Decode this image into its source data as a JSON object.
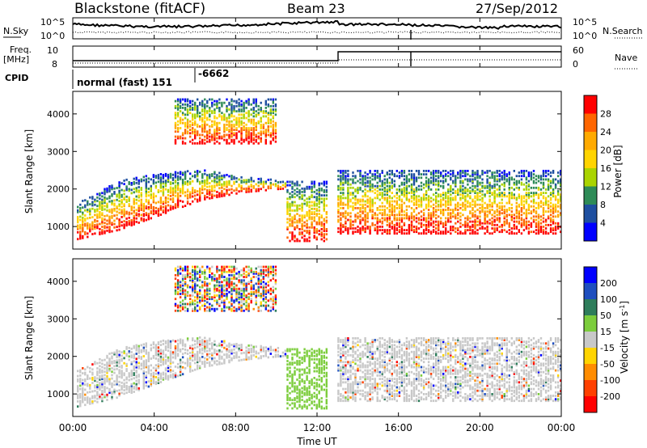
{
  "chart_data": [
    {
      "type": "heatmap",
      "header": {
        "radar": "Blackstone (fitACF)",
        "beam": "Beam 23",
        "date": "27/Sep/2012"
      },
      "summary_panels": {
        "left_labels": {
          "nsky": "N.Sky",
          "freq": "Freq.",
          "freq_unit": "[MHz]",
          "cpid": "CPID"
        },
        "right_labels": {
          "nsearch": "N.Search",
          "nave": "Nave"
        },
        "noise_ticks": [
          "10^5",
          "10^0"
        ],
        "freq_ticks": [
          "10",
          "8"
        ],
        "nave_ticks": [
          "60",
          "0"
        ],
        "cpid_segments": [
          {
            "label": "normal (fast) 151",
            "start_hour": 0,
            "end_hour": 6
          },
          {
            "label": "-6662",
            "start_hour": 6,
            "end_hour": 24
          }
        ],
        "frequency_step_hour": 13.1
      },
      "xlabel": "Time UT",
      "x_ticks": [
        "00:00",
        "04:00",
        "08:00",
        "12:00",
        "16:00",
        "20:00",
        "00:00"
      ],
      "xlim_hours": [
        0,
        24
      ],
      "ylabel": "Slant Range [km]",
      "ylim": [
        400,
        4600
      ],
      "y_ticks": [
        "1000",
        "2000",
        "3000",
        "4000"
      ],
      "panels": [
        {
          "quantity": "Power",
          "colorbar_label": "Power [dB]",
          "colorbar_ticks": [
            "28",
            "24",
            "20",
            "16",
            "12",
            "8",
            "4"
          ],
          "colorbar_colors": [
            "#ff0000",
            "#ff6600",
            "#ffaa00",
            "#ffd400",
            "#aad400",
            "#2e8b57",
            "#1e4fa0",
            "#0000ff"
          ],
          "range_dB": [
            0,
            32
          ]
        },
        {
          "quantity": "Velocity",
          "colorbar_label": "Velocity [m s^-1]",
          "colorbar_ticks": [
            "200",
            "100",
            "50",
            "15",
            "-15",
            "-50",
            "-100",
            "-200"
          ],
          "colorbar_colors": [
            "#0000ff",
            "#1f4fbf",
            "#2e7d5b",
            "#7ccd3c",
            "#c8c8c8",
            "#ffd400",
            "#ff8c00",
            "#ff4000",
            "#ff0000"
          ],
          "range_m_s": [
            -250,
            250
          ]
        }
      ],
      "echo_regions": [
        {
          "desc": "ionospheric scatter band",
          "start_hour": 0.2,
          "end_hour": 10.5,
          "lower_km": [
            650,
            900,
            1300,
            1700,
            1900,
            2000
          ],
          "upper_km": [
            1600,
            2200,
            2400,
            2500,
            2300,
            2200
          ]
        },
        {
          "desc": "high-range scatter",
          "start_hour": 5.0,
          "end_hour": 10.0,
          "lower_km": 3200,
          "upper_km": 4400
        },
        {
          "desc": "near-range descent",
          "start_hour": 10.5,
          "end_hour": 12.5,
          "lower_km": 600,
          "upper_km": 2200
        },
        {
          "desc": "night band",
          "start_hour": 13.0,
          "end_hour": 24.0,
          "lower_km": 800,
          "upper_km": 2500
        }
      ]
    }
  ]
}
